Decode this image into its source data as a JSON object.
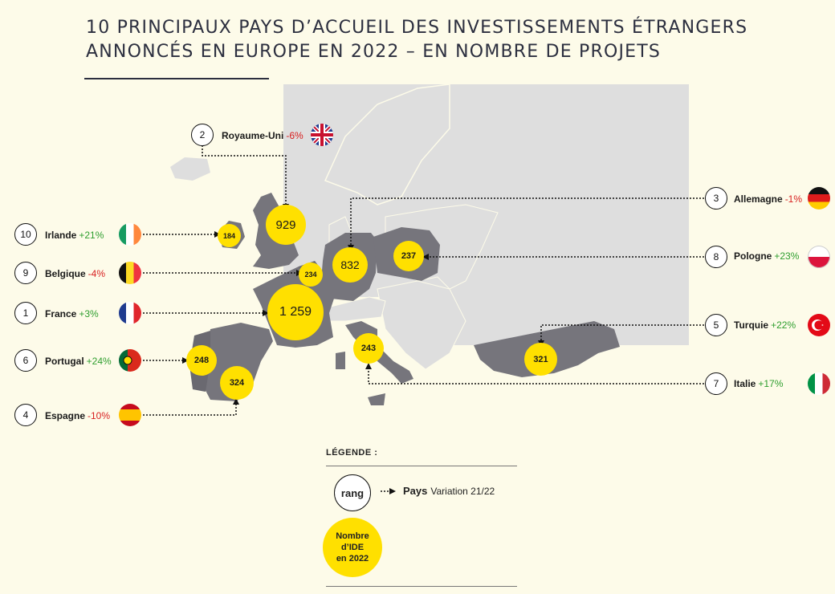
{
  "title": {
    "line1": "10 PRINCIPAUX PAYS D’ACCUEIL DES INVESTISSEMENTS ÉTRANGERS",
    "line2": "ANNONCÉS EN EUROPE EN 2022 – EN NOMBRE DE PROJETS"
  },
  "colors": {
    "highlight_country": "#76757c",
    "other_country": "#dedede",
    "bubble": "#ffe000",
    "positive": "#2e9e2e",
    "negative": "#d82020",
    "background": "#fdfbe9"
  },
  "countries": [
    {
      "rank": "1",
      "name": "France",
      "variation": "+3%",
      "trend": "pos",
      "value": "1 259",
      "flag": "france-flag-icon"
    },
    {
      "rank": "2",
      "name": "Royaume-Uni",
      "variation": "-6%",
      "trend": "neg",
      "value": "929",
      "flag": "uk-flag-icon"
    },
    {
      "rank": "3",
      "name": "Allemagne",
      "variation": "-1%",
      "trend": "neg",
      "value": "832",
      "flag": "germany-flag-icon"
    },
    {
      "rank": "4",
      "name": "Espagne",
      "variation": "-10%",
      "trend": "neg",
      "value": "324",
      "flag": "spain-flag-icon"
    },
    {
      "rank": "5",
      "name": "Turquie",
      "variation": "+22%",
      "trend": "pos",
      "value": "321",
      "flag": "turkey-flag-icon"
    },
    {
      "rank": "6",
      "name": "Portugal",
      "variation": "+24%",
      "trend": "pos",
      "value": "248",
      "flag": "portugal-flag-icon"
    },
    {
      "rank": "7",
      "name": "Italie",
      "variation": "+17%",
      "trend": "pos",
      "value": "243",
      "flag": "italy-flag-icon"
    },
    {
      "rank": "8",
      "name": "Pologne",
      "variation": "+23%",
      "trend": "pos",
      "value": "237",
      "flag": "poland-flag-icon"
    },
    {
      "rank": "9",
      "name": "Belgique",
      "variation": "-4%",
      "trend": "neg",
      "value": "234",
      "flag": "belgium-flag-icon"
    },
    {
      "rank": "10",
      "name": "Irlande",
      "variation": "+21%",
      "trend": "pos",
      "value": "184",
      "flag": "ireland-flag-icon"
    }
  ],
  "legend": {
    "title": "LÉGENDE :",
    "rank_label": "rang",
    "pays_label": "Pays",
    "variation_label": "Variation 21/22",
    "bubble_line1": "Nombre",
    "bubble_line2": "d’IDE",
    "bubble_line3": "en 2022"
  }
}
